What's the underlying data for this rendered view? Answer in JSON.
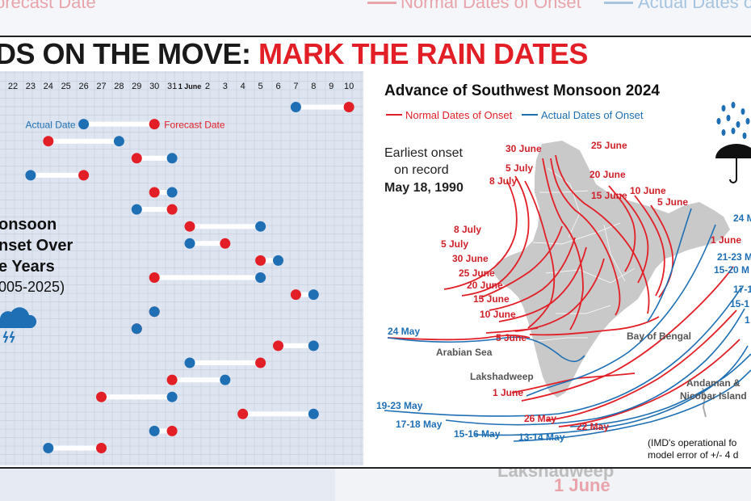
{
  "background": {
    "top_left_text": "orecast Date",
    "top_legend_normal": "Normal Dates of Onset",
    "top_legend_actual": "Actual Dates o",
    "bottom_place": "Lakshadweep",
    "bottom_date": "1 June"
  },
  "headline": {
    "part1": "DS ON THE MOVE: ",
    "part2": "MARK THE RAIN DATES"
  },
  "colors": {
    "red": "#e21f26",
    "blue": "#1e6fb4",
    "grid_bg": "#dfe5f0",
    "grid_line": "#bcc7da",
    "land": "#c9c9c9"
  },
  "chart_data": [
    {
      "type": "dumbbell",
      "title_lines": [
        "onsoon",
        "nset Over",
        "e Years",
        "005-2025)"
      ],
      "x_ticks": [
        "22",
        "23",
        "24",
        "25",
        "26",
        "27",
        "28",
        "29",
        "30",
        "31",
        "1 June",
        "2",
        "3",
        "4",
        "5",
        "6",
        "7",
        "8",
        "9",
        "10"
      ],
      "legend": {
        "actual": "Actual Date",
        "forecast": "Forecast Date"
      },
      "rows": [
        {
          "actual": "7 June",
          "forecast": "10 June"
        },
        {
          "actual": "26 May",
          "forecast": "30 May"
        },
        {
          "actual": "28 May",
          "forecast": "24 May"
        },
        {
          "actual": "31 May",
          "forecast": "29 May"
        },
        {
          "actual": "23 May",
          "forecast": "26 May"
        },
        {
          "actual": "31 May",
          "forecast": "30 May"
        },
        {
          "actual": "29 May",
          "forecast": "31 May"
        },
        {
          "actual": "5 June",
          "forecast": "1 June"
        },
        {
          "actual": "1 June",
          "forecast": "3 June"
        },
        {
          "actual": "6 June",
          "forecast": "5 June"
        },
        {
          "actual": "5 June",
          "forecast": "30 May"
        },
        {
          "actual": "8 June",
          "forecast": "7 June"
        },
        {
          "actual": "30 May",
          "forecast": "30 May"
        },
        {
          "actual": "29 May",
          "forecast": "29 May"
        },
        {
          "actual": "8 June",
          "forecast": "6 June"
        },
        {
          "actual": "1 June",
          "forecast": "5 June"
        },
        {
          "actual": "3 June",
          "forecast": "31 May"
        },
        {
          "actual": "31 May",
          "forecast": "27 May"
        },
        {
          "actual": "8 June",
          "forecast": "4 June"
        },
        {
          "actual": "30 May",
          "forecast": "31 May"
        },
        {
          "actual": "24 May",
          "forecast": "27 May"
        }
      ]
    },
    {
      "type": "map",
      "title": "Advance of Southwest Monsoon 2024",
      "legend": {
        "normal": "Normal Dates of Onset",
        "actual": "Actual Dates of Onset"
      },
      "annotation": {
        "line1": "Earliest onset",
        "line2": "on record",
        "line3": "May 18, 1990"
      },
      "normal_labels": [
        "30 June",
        "25 June",
        "5 July",
        "8 July",
        "20 June",
        "15 June",
        "10 June",
        "5 June",
        "8 July",
        "5 July",
        "30 June",
        "25 June",
        "20 June",
        "15 June",
        "10 June",
        "5 June",
        "1 June"
      ],
      "actual_labels": [
        "24 May",
        "1 June",
        "21-23 M",
        "15-20 M",
        "17-1",
        "15-1",
        "1",
        "24 May",
        "19-23 May",
        "17-18 May",
        "15-16 May",
        "13-14 May",
        "26 May",
        "22 May"
      ],
      "places": [
        "Arabian Sea",
        "Bay of Bengal",
        "Lakshadweep",
        "Andaman &",
        "Nicobar Island"
      ],
      "footnote": {
        "line1": "(IMD's operational fo",
        "line2": "model error of +/- 4 d"
      }
    }
  ]
}
